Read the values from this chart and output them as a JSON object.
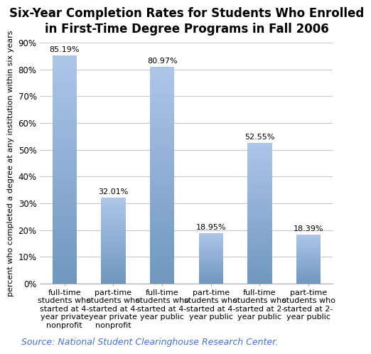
{
  "title": "Six-Year Completion Rates for Students Who Enrolled\nin First-Time Degree Programs in Fall 2006",
  "categories": [
    "full-time\nstudents who\nstarted at 4-\nyear private\nnonprofit",
    "part-time\nstudents who\nstarted at 4-\nyear private\nnonprofit",
    "full-time\nstudents who\nstarted at 4-\nyear public",
    "part-time\nstudents who\nstarted at 4-\nyear public",
    "full-time\nstudents who\nstarted at 2-\nyear public",
    "part-time\nstudents who\nstarted at 2-\nyear public"
  ],
  "values": [
    85.19,
    32.01,
    80.97,
    18.95,
    52.55,
    18.39
  ],
  "bar_color_top": "#aec6e8",
  "bar_color_bottom": "#7097c0",
  "bar_edge_color": "none",
  "ylabel": "percent who completed a degree at any institution within six years",
  "ylim": [
    0,
    90
  ],
  "yticks": [
    0,
    10,
    20,
    30,
    40,
    50,
    60,
    70,
    80,
    90
  ],
  "ytick_labels": [
    "0%",
    "10%",
    "20%",
    "30%",
    "40%",
    "50%",
    "60%",
    "70%",
    "80%",
    "90%"
  ],
  "source_text": "Source: National Student Clearinghouse Research Center.",
  "title_fontsize": 12,
  "label_fontsize": 8,
  "tick_fontsize": 8.5,
  "value_label_fontsize": 8,
  "source_fontsize": 9,
  "background_color": "#ffffff",
  "grid_color": "#c8c8c8",
  "title_color": "#000000",
  "source_color": "#4472c4",
  "bar_width": 0.5
}
